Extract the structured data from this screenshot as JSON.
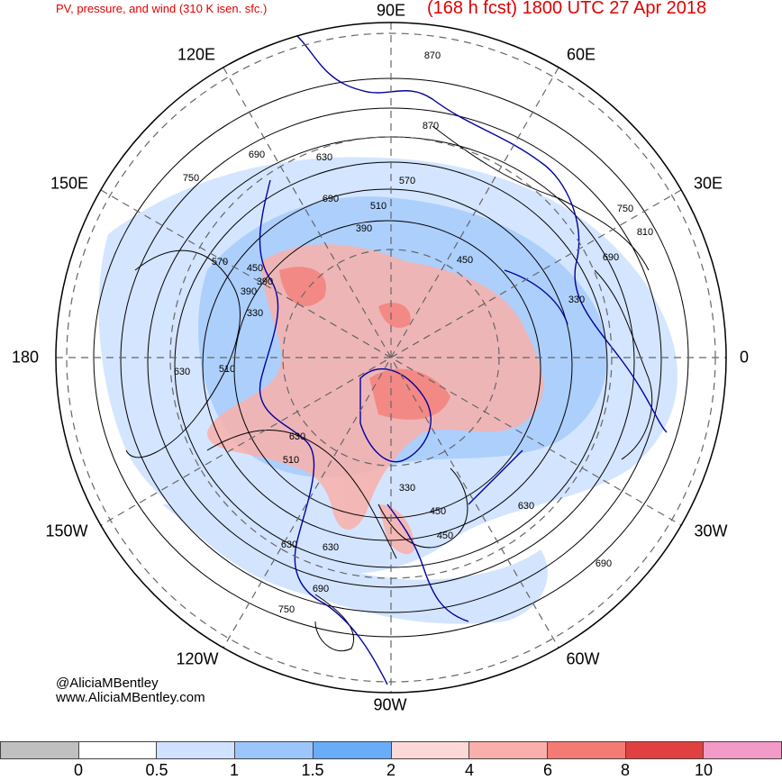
{
  "header": {
    "subtitle": "PV, pressure, and wind (310 K isen. sfc.)",
    "title": "(168 h fcst) 1800 UTC 27 Apr 2018"
  },
  "map": {
    "projection": "north-polar-stereographic",
    "longitude_labels": {
      "top": "90E",
      "top_right": "60E",
      "upper_right": "30E",
      "right": "0",
      "lower_right": "30W",
      "bottom_right": "60W",
      "bottom": "90W",
      "bottom_left": "120W",
      "lower_left": "150W",
      "left": "180",
      "upper_left": "150E",
      "top_left": "120E"
    },
    "contour_labels": [
      "870",
      "870",
      "570",
      "510",
      "630",
      "690",
      "690",
      "750",
      "750",
      "810",
      "690",
      "450",
      "390",
      "330",
      "390",
      "450",
      "570",
      "630",
      "510",
      "330",
      "630",
      "450",
      "510",
      "630",
      "630",
      "690",
      "690",
      "750",
      "630",
      "390",
      "450",
      "330"
    ],
    "colors": {
      "coastline": "#0000a0",
      "contour": "#000000",
      "grid": "#666666"
    }
  },
  "credits": {
    "handle": "@AliciaMBentley",
    "website": "www.AliciaMBentley.com"
  },
  "colorbar": {
    "colors": [
      "#c0c0c0",
      "#ffffff",
      "#cfe2ff",
      "#9cc6fb",
      "#69acf7",
      "#fcd9d6",
      "#f9b0aa",
      "#f47b74",
      "#e04040",
      "#f29ac8"
    ],
    "ticks": [
      "0",
      "0.5",
      "1",
      "1.5",
      "2",
      "4",
      "6",
      "8",
      "10"
    ]
  }
}
